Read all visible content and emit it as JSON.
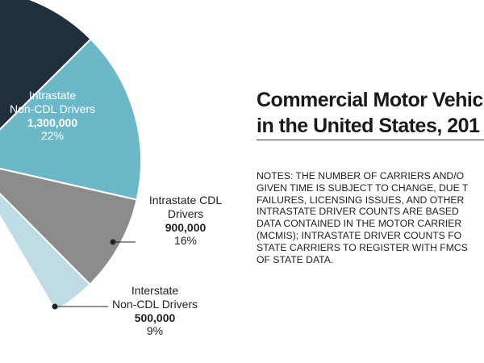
{
  "chart_data": {
    "type": "pie",
    "title_lines": [
      "Commercial Motor Vehic",
      "in the United States, 201"
    ],
    "slices": [
      {
        "name_lines": [
          "Intrastate",
          "Non-CDL Drivers"
        ],
        "count": "1,300,000",
        "percent_label": "22%",
        "value": 22,
        "color": "#22303d"
      },
      {
        "name_lines": [
          "Intrastate CDL",
          "Drivers"
        ],
        "count": "900,000",
        "percent_label": "16%",
        "value": 16,
        "color": "#6bb8c8"
      },
      {
        "name_lines": [
          "Interstate",
          "Non-CDL Drivers"
        ],
        "count": "500,000",
        "percent_label": "9%",
        "value": 9,
        "color": "#8c8c8c"
      },
      {
        "value": 4,
        "color": "#bfdbe6"
      }
    ]
  },
  "notes_lines": [
    "NOTES: THE NUMBER OF CARRIERS AND/O",
    "GIVEN TIME IS SUBJECT TO CHANGE, DUE T",
    "FAILURES, LICENSING ISSUES, AND OTHER",
    "INTRASTATE DRIVER COUNTS ARE BASED",
    "DATA CONTAINED IN THE MOTOR CARRIER",
    "(MCMIS); INTRASTATE DRIVER COUNTS FO",
    "STATE CARRIERS TO REGISTER WITH FMCS",
    "OF STATE DATA."
  ]
}
